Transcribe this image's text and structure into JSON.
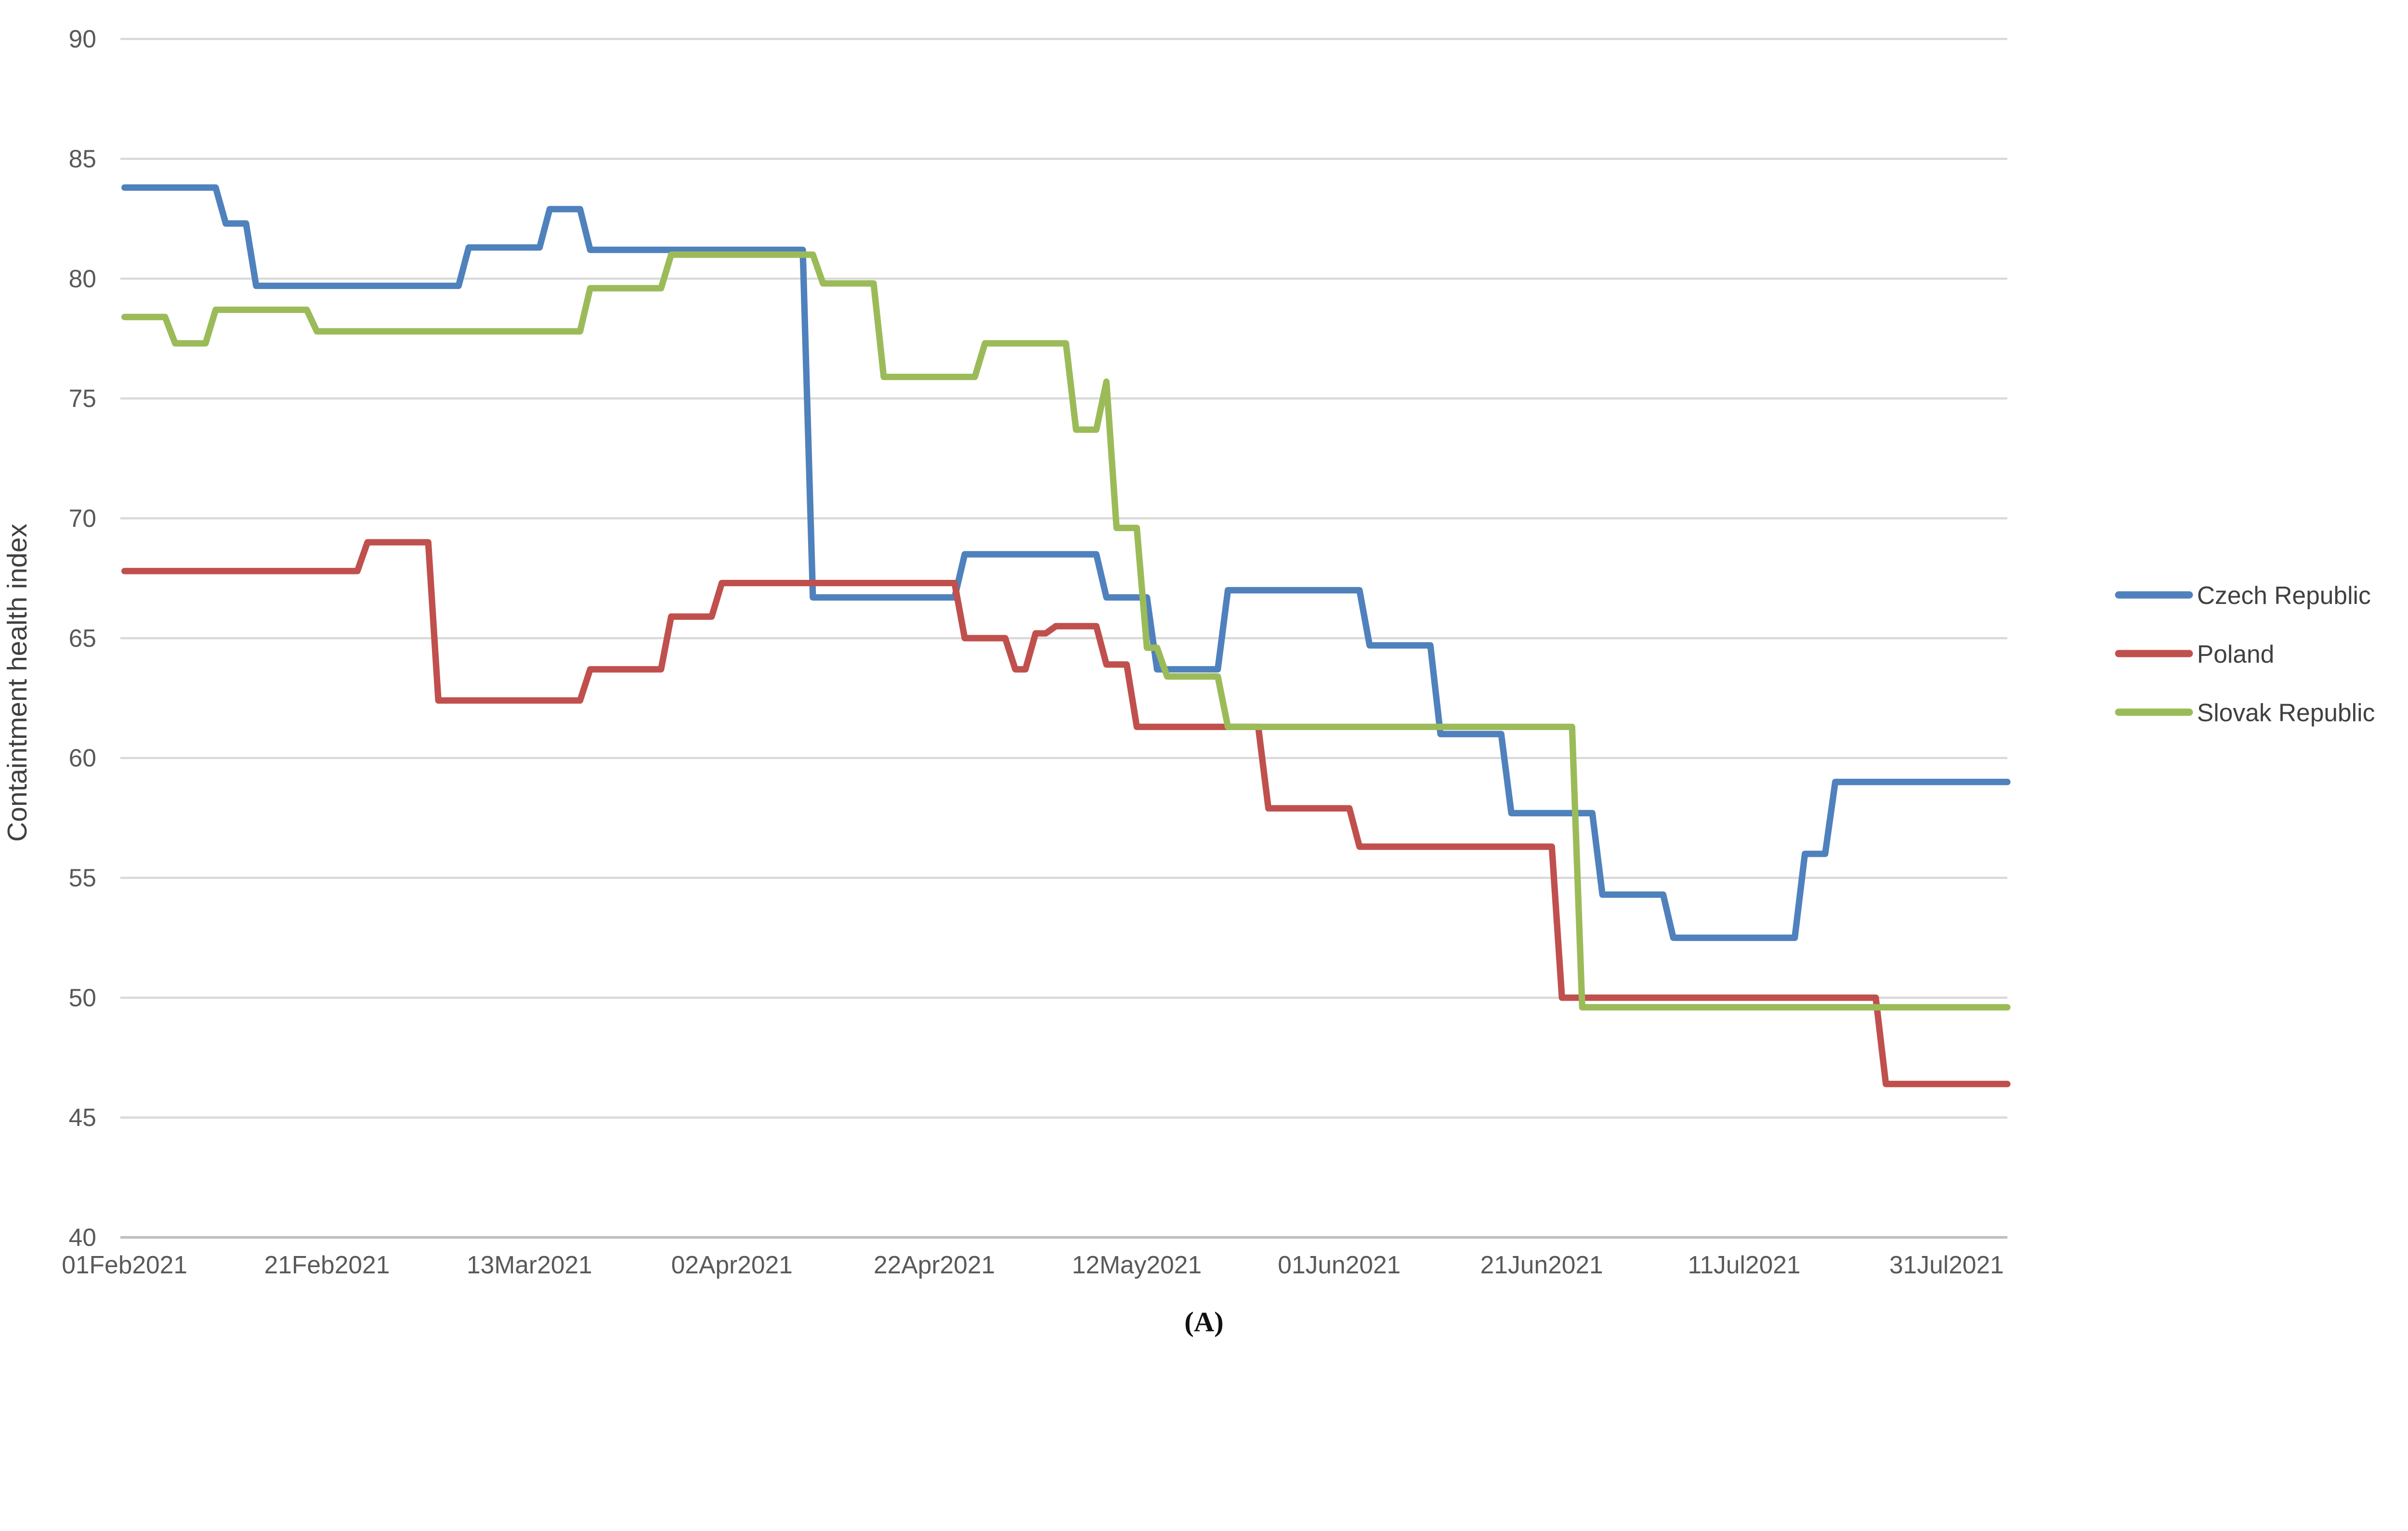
{
  "caption": "(A)",
  "chart_data": {
    "type": "line",
    "title": "",
    "xlabel": "",
    "ylabel": "Containtment health index",
    "ylim": [
      40,
      90
    ],
    "ytick_step": 5,
    "grid": "horizontal",
    "legend_position": "right-middle",
    "axis_text_color": "#595959",
    "grid_color": "#D9D9D9",
    "axis_line_color": "#BFBFBF",
    "x_end_day": 186,
    "xticks": [
      {
        "day": 0,
        "label": "01Feb2021"
      },
      {
        "day": 20,
        "label": "21Feb2021"
      },
      {
        "day": 40,
        "label": "13Mar2021"
      },
      {
        "day": 60,
        "label": "02Apr2021"
      },
      {
        "day": 80,
        "label": "22Apr2021"
      },
      {
        "day": 100,
        "label": "12May2021"
      },
      {
        "day": 120,
        "label": "01Jun2021"
      },
      {
        "day": 140,
        "label": "21Jun2021"
      },
      {
        "day": 160,
        "label": "11Jul2021"
      },
      {
        "day": 180,
        "label": "31Jul2021"
      }
    ],
    "series": [
      {
        "name": "Czech Republic",
        "color": "#4F81BD",
        "points": [
          [
            0,
            83.8
          ],
          [
            10,
            82.3
          ],
          [
            13,
            79.7
          ],
          [
            34,
            81.3
          ],
          [
            42,
            82.9
          ],
          [
            46,
            81.2
          ],
          [
            68,
            66.7
          ],
          [
            83,
            68.5
          ],
          [
            97,
            66.7
          ],
          [
            102,
            63.7
          ],
          [
            109,
            67.0
          ],
          [
            123,
            64.7
          ],
          [
            130,
            61.0
          ],
          [
            137,
            57.7
          ],
          [
            146,
            54.3
          ],
          [
            153,
            52.5
          ],
          [
            166,
            56.0
          ],
          [
            169,
            59.0
          ]
        ]
      },
      {
        "name": "Poland",
        "color": "#C0504D",
        "points": [
          [
            0,
            67.8
          ],
          [
            24,
            69.0
          ],
          [
            31,
            62.4
          ],
          [
            46,
            63.7
          ],
          [
            54,
            65.9
          ],
          [
            59,
            67.3
          ],
          [
            83,
            65.0
          ],
          [
            88,
            63.7
          ],
          [
            90,
            65.2
          ],
          [
            92,
            65.5
          ],
          [
            97,
            63.9
          ],
          [
            100,
            61.3
          ],
          [
            113,
            57.9
          ],
          [
            122,
            56.3
          ],
          [
            142,
            50.0
          ],
          [
            174,
            46.4
          ]
        ]
      },
      {
        "name": "Slovak Republic",
        "color": "#9BBB59",
        "points": [
          [
            0,
            78.4
          ],
          [
            5,
            77.3
          ],
          [
            9,
            78.7
          ],
          [
            19,
            77.8
          ],
          [
            46,
            79.6
          ],
          [
            54,
            81.0
          ],
          [
            69,
            79.8
          ],
          [
            75,
            75.9
          ],
          [
            85,
            77.3
          ],
          [
            94,
            73.7
          ],
          [
            97,
            75.7
          ],
          [
            98,
            69.6
          ],
          [
            101,
            64.6
          ],
          [
            103,
            63.4
          ],
          [
            109,
            61.3
          ],
          [
            144,
            49.6
          ]
        ]
      }
    ]
  }
}
